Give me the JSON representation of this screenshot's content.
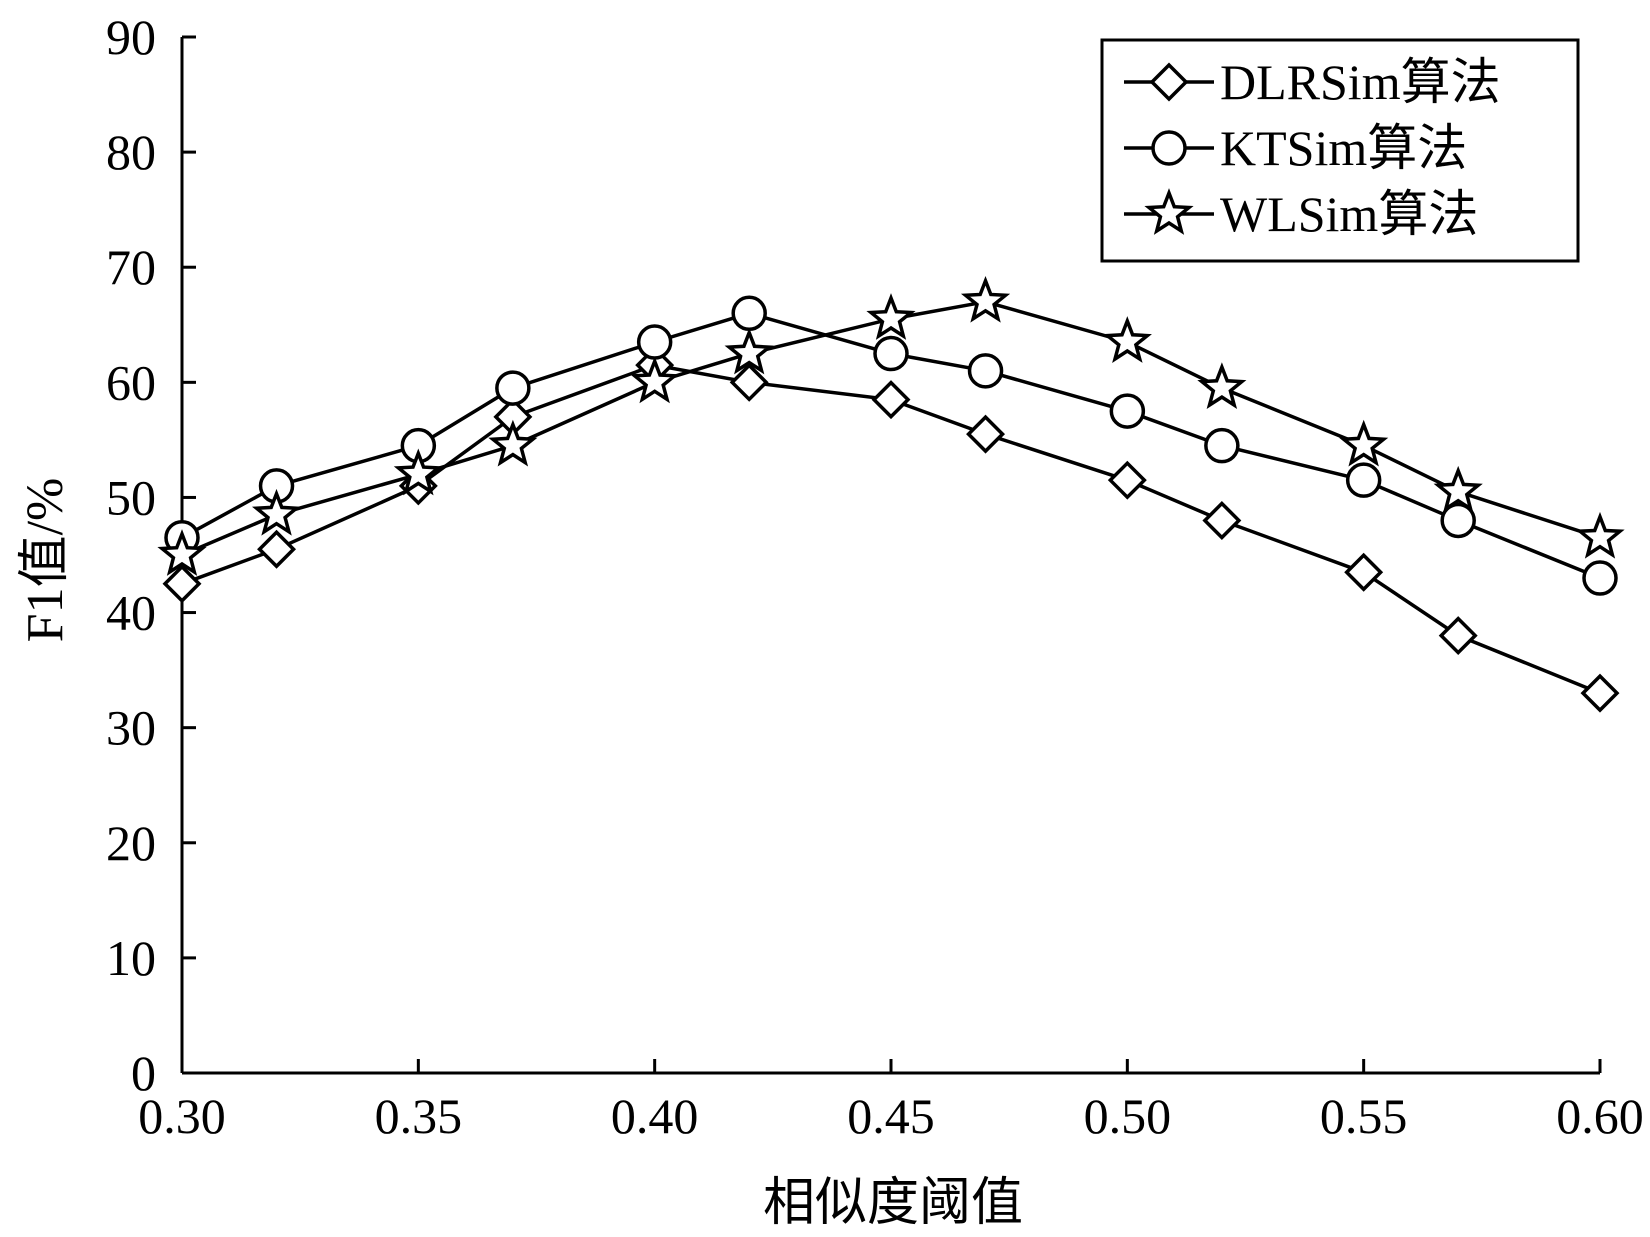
{
  "chart_data": {
    "type": "line",
    "xlabel": "相似度阈值",
    "ylabel": "F1值/%",
    "xlim": [
      0.3,
      0.6
    ],
    "ylim": [
      0,
      90
    ],
    "xticks": [
      "0.30",
      "0.35",
      "0.40",
      "0.45",
      "0.50",
      "0.55",
      "0.60"
    ],
    "yticks": [
      "0",
      "10",
      "20",
      "30",
      "40",
      "50",
      "60",
      "70",
      "80",
      "90"
    ],
    "grid": false,
    "legend_position": "top-right",
    "x": [
      0.3,
      0.32,
      0.35,
      0.37,
      0.4,
      0.42,
      0.45,
      0.47,
      0.5,
      0.52,
      0.55,
      0.57,
      0.6
    ],
    "series": [
      {
        "name": "DLRSim算法",
        "marker": "diamond",
        "values": [
          42.5,
          45.5,
          51.0,
          57.0,
          61.5,
          60.0,
          58.5,
          55.5,
          51.5,
          48.0,
          43.5,
          38.0,
          33.0
        ]
      },
      {
        "name": "KTSim算法",
        "marker": "circle",
        "values": [
          46.5,
          51.0,
          54.5,
          59.5,
          63.5,
          66.0,
          62.5,
          61.0,
          57.5,
          54.5,
          51.5,
          48.0,
          43.0
        ]
      },
      {
        "name": "WLSim算法",
        "marker": "star",
        "values": [
          45.0,
          48.5,
          52.0,
          54.5,
          60.0,
          62.5,
          65.5,
          67.0,
          63.5,
          59.5,
          54.5,
          50.5,
          46.5
        ]
      }
    ],
    "colors": {
      "line": "#000000",
      "marker_fill": "#ffffff"
    }
  }
}
